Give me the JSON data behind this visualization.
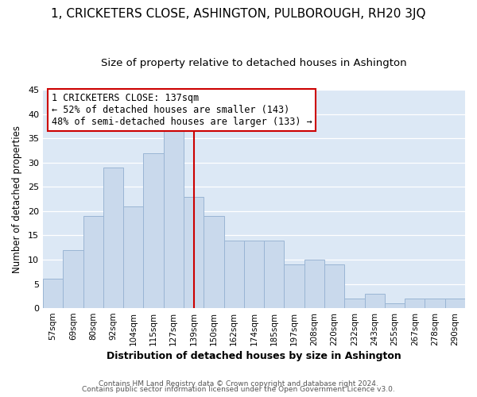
{
  "title": "1, CRICKETERS CLOSE, ASHINGTON, PULBOROUGH, RH20 3JQ",
  "subtitle": "Size of property relative to detached houses in Ashington",
  "xlabel": "Distribution of detached houses by size in Ashington",
  "ylabel": "Number of detached properties",
  "categories": [
    "57sqm",
    "69sqm",
    "80sqm",
    "92sqm",
    "104sqm",
    "115sqm",
    "127sqm",
    "139sqm",
    "150sqm",
    "162sqm",
    "174sqm",
    "185sqm",
    "197sqm",
    "208sqm",
    "220sqm",
    "232sqm",
    "243sqm",
    "255sqm",
    "267sqm",
    "278sqm",
    "290sqm"
  ],
  "values": [
    6,
    12,
    19,
    29,
    21,
    32,
    37,
    23,
    19,
    14,
    14,
    14,
    9,
    10,
    9,
    2,
    3,
    1,
    2,
    2,
    2
  ],
  "bar_color": "#c9d9ec",
  "bar_edge_color": "#9ab5d4",
  "vline_x": 7,
  "vline_color": "#cc0000",
  "annotation_title": "1 CRICKETERS CLOSE: 137sqm",
  "annotation_line1": "← 52% of detached houses are smaller (143)",
  "annotation_line2": "48% of semi-detached houses are larger (133) →",
  "annotation_box_color": "#ffffff",
  "annotation_box_edge": "#cc0000",
  "ylim": [
    0,
    45
  ],
  "yticks": [
    0,
    5,
    10,
    15,
    20,
    25,
    30,
    35,
    40,
    45
  ],
  "footer1": "Contains HM Land Registry data © Crown copyright and database right 2024.",
  "footer2": "Contains public sector information licensed under the Open Government Licence v3.0.",
  "bg_color": "#ffffff",
  "plot_bg_color": "#dce8f5",
  "grid_color": "#ffffff",
  "title_fontsize": 11,
  "subtitle_fontsize": 9.5
}
